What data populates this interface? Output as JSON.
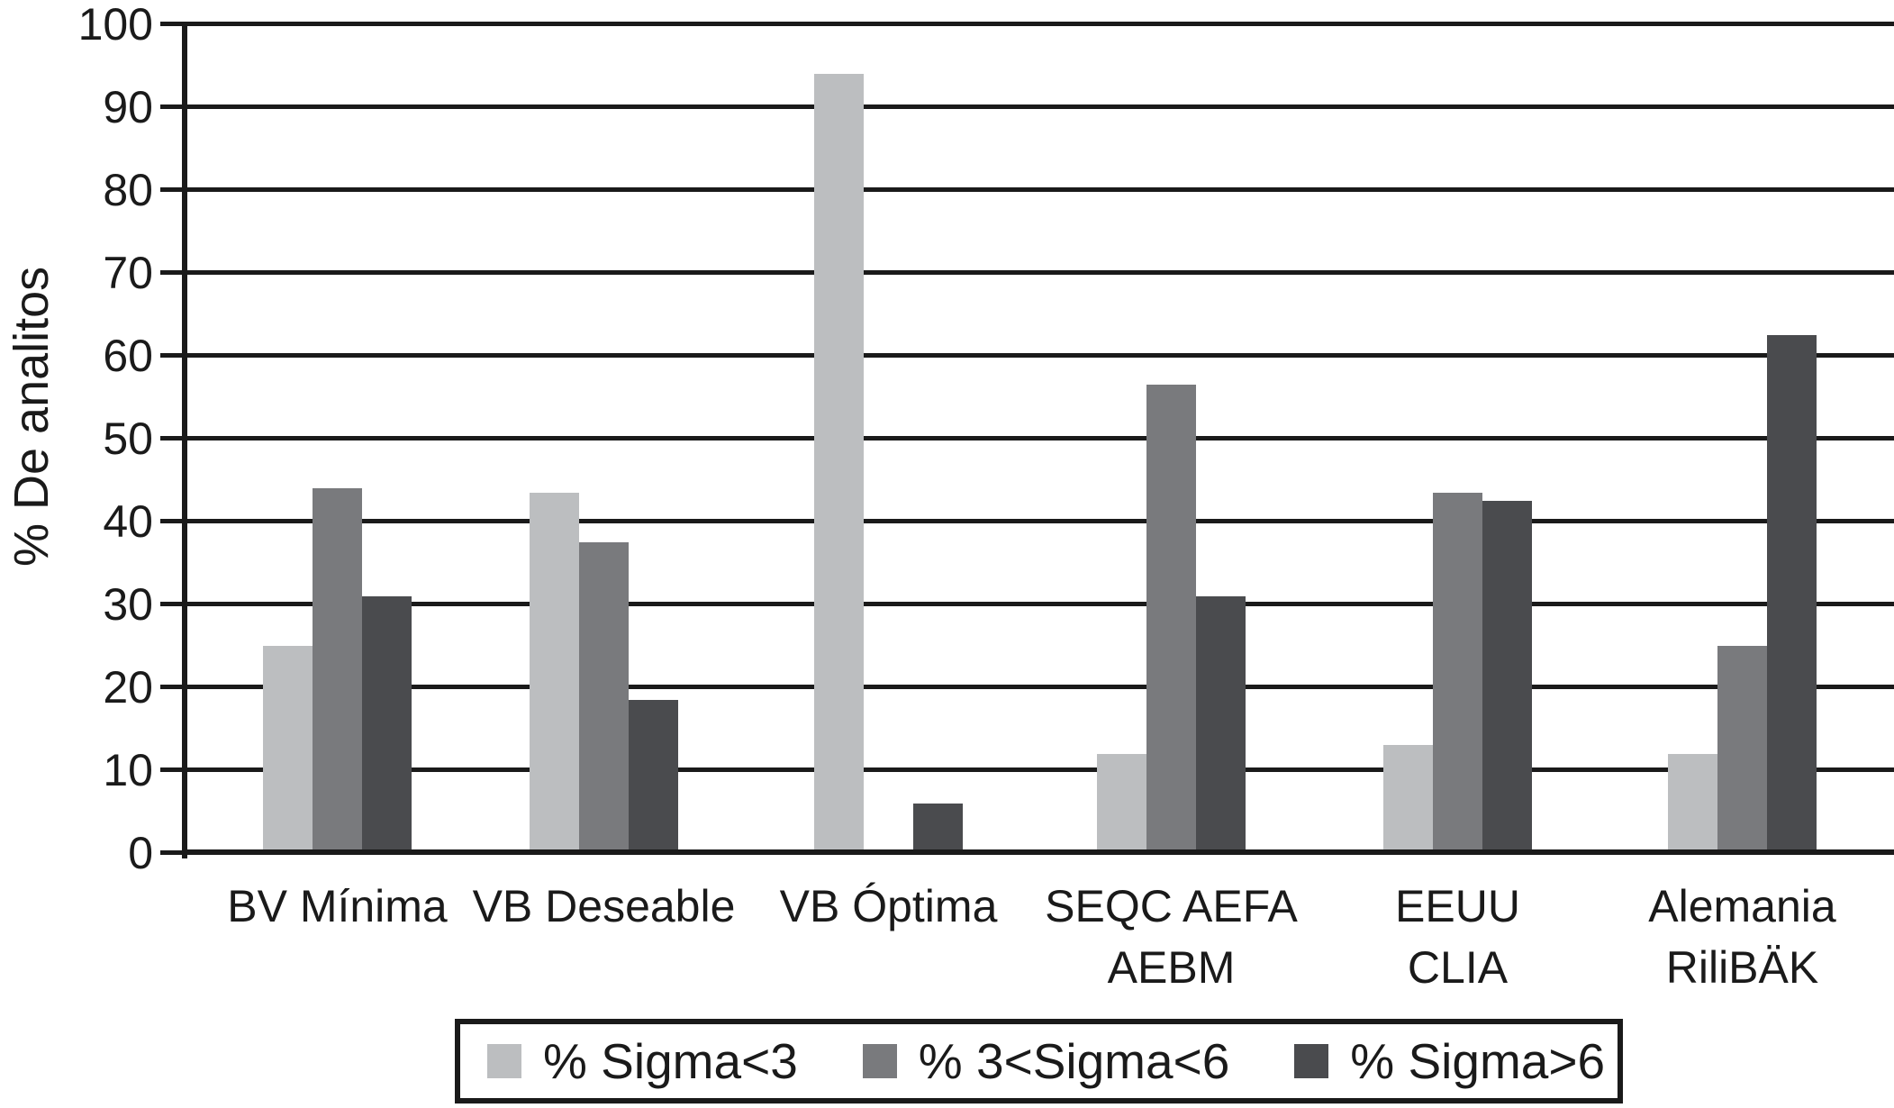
{
  "chart_data": {
    "type": "bar",
    "title": "",
    "xlabel": "",
    "ylabel": "% De analitos",
    "ylim": [
      0,
      100
    ],
    "ytick_step": 10,
    "grid": "horizontal",
    "legend_position": "bottom",
    "axis_color": "#1a1a1a",
    "categories": [
      {
        "lines": [
          "BV Mínima"
        ]
      },
      {
        "lines": [
          "VB Deseable"
        ]
      },
      {
        "lines": [
          "VB Óptima"
        ]
      },
      {
        "lines": [
          "SEQC AEFA",
          "AEBM"
        ]
      },
      {
        "lines": [
          "EEUU",
          "CLIA"
        ]
      },
      {
        "lines": [
          "Alemania",
          "RiliBÄK"
        ]
      }
    ],
    "series": [
      {
        "name": "% Sigma<3",
        "color": "#bcbec0",
        "values": [
          25,
          43.5,
          94,
          12,
          13,
          12
        ]
      },
      {
        "name": "% 3<Sigma<6",
        "color": "#797a7d",
        "values": [
          44,
          37.5,
          0,
          56.5,
          43.5,
          25
        ]
      },
      {
        "name": "% Sigma>6",
        "color": "#4a4b4e",
        "values": [
          31,
          18.5,
          6,
          31,
          42.5,
          62.5
        ]
      }
    ]
  }
}
